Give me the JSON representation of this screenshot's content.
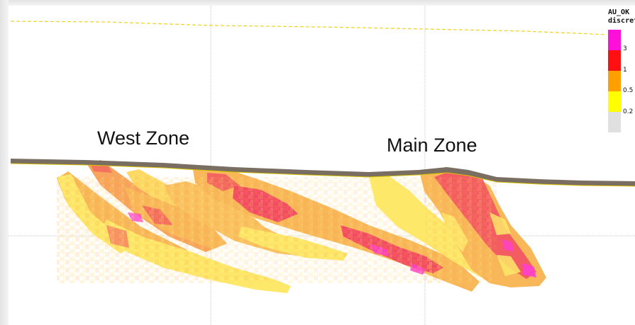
{
  "legend": {
    "title_line1": "AU_OK",
    "title_line2": "discret",
    "items": [
      {
        "color": "#ff10d8",
        "label": "3"
      },
      {
        "color": "#ff1010",
        "label": "1"
      },
      {
        "color": "#ffa000",
        "label": "0.5"
      },
      {
        "color": "#ffff00",
        "label": "0.2"
      },
      {
        "color": "#e0e0e0",
        "label": ""
      }
    ]
  },
  "labels": {
    "west_zone": "West Zone",
    "main_zone": "Main Zone"
  },
  "colors": {
    "grid": "#c8c8c8",
    "topography_line": "#f3d400",
    "surface_band": "#7a6e63",
    "low_grade": "#fff173",
    "mid_grade": "#f8b85a",
    "high_grade": "#f24b63",
    "very_high_grade": "#ff3fd0"
  }
}
